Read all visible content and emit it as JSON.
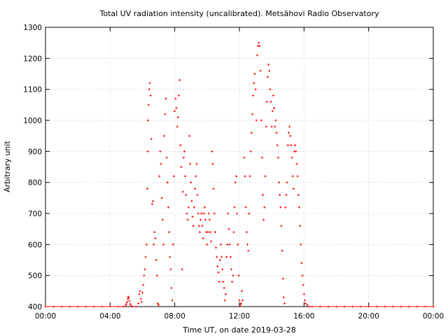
{
  "chart_data": {
    "type": "scatter",
    "title": "Total UV radiation intensity (uncalibrated). Metsähovi Radio Observatory",
    "xlabel": "Time UT, on date 2019-03-28",
    "ylabel": "Arbitrary unit",
    "xlim": [
      0,
      24
    ],
    "ylim": [
      400,
      1300
    ],
    "x_ticks": [
      "00:00",
      "04:00",
      "08:00",
      "12:00",
      "16:00",
      "20:00",
      "00:00"
    ],
    "y_ticks": [
      "400",
      "500",
      "600",
      "700",
      "800",
      "900",
      "1000",
      "1100",
      "1200",
      "1300"
    ],
    "grid": true,
    "marker_color": "#ff0000",
    "series": [
      {
        "values_note": "",
        "points": [
          [
            0.0,
            400
          ],
          [
            0.5,
            400
          ],
          [
            1.0,
            400
          ],
          [
            1.5,
            400
          ],
          [
            2.0,
            400
          ],
          [
            2.5,
            400
          ],
          [
            3.0,
            400
          ],
          [
            3.5,
            400
          ],
          [
            4.0,
            400
          ],
          [
            4.5,
            400
          ],
          [
            4.8,
            400
          ],
          [
            4.95,
            402
          ],
          [
            5.0,
            408
          ],
          [
            5.05,
            415
          ],
          [
            5.1,
            425
          ],
          [
            5.12,
            432
          ],
          [
            5.15,
            428
          ],
          [
            5.2,
            418
          ],
          [
            5.25,
            408
          ],
          [
            5.3,
            402
          ],
          [
            5.4,
            400
          ],
          [
            5.6,
            400
          ],
          [
            5.75,
            410
          ],
          [
            5.8,
            440
          ],
          [
            5.85,
            450
          ],
          [
            5.9,
            425
          ],
          [
            5.95,
            415
          ],
          [
            6.0,
            445
          ],
          [
            6.05,
            470
          ],
          [
            6.1,
            500
          ],
          [
            6.15,
            520
          ],
          [
            6.2,
            560
          ],
          [
            6.25,
            600
          ],
          [
            6.3,
            780
          ],
          [
            6.32,
            900
          ],
          [
            6.35,
            1000
          ],
          [
            6.38,
            1050
          ],
          [
            6.42,
            1100
          ],
          [
            6.45,
            1120
          ],
          [
            6.5,
            1080
          ],
          [
            6.55,
            940
          ],
          [
            6.6,
            730
          ],
          [
            6.65,
            740
          ],
          [
            6.7,
            600
          ],
          [
            6.75,
            640
          ],
          [
            6.8,
            620
          ],
          [
            6.85,
            550
          ],
          [
            6.9,
            500
          ],
          [
            6.95,
            410
          ],
          [
            7.0,
            405
          ],
          [
            7.05,
            820
          ],
          [
            7.1,
            900
          ],
          [
            7.15,
            860
          ],
          [
            7.2,
            750
          ],
          [
            7.25,
            680
          ],
          [
            7.3,
            600
          ],
          [
            7.35,
            950
          ],
          [
            7.4,
            1020
          ],
          [
            7.45,
            1070
          ],
          [
            7.5,
            880
          ],
          [
            7.55,
            800
          ],
          [
            7.6,
            720
          ],
          [
            7.65,
            640
          ],
          [
            7.7,
            560
          ],
          [
            7.75,
            520
          ],
          [
            7.8,
            460
          ],
          [
            7.85,
            420
          ],
          [
            7.9,
            600
          ],
          [
            7.95,
            820
          ],
          [
            8.0,
            1030
          ],
          [
            8.05,
            1070
          ],
          [
            8.1,
            1040
          ],
          [
            8.15,
            980
          ],
          [
            8.2,
            1010
          ],
          [
            8.25,
            1080
          ],
          [
            8.3,
            1130
          ],
          [
            8.35,
            920
          ],
          [
            8.4,
            850
          ],
          [
            8.45,
            520
          ],
          [
            8.5,
            770
          ],
          [
            8.55,
            880
          ],
          [
            8.6,
            900
          ],
          [
            8.65,
            820
          ],
          [
            8.7,
            760
          ],
          [
            8.75,
            700
          ],
          [
            8.8,
            680
          ],
          [
            8.85,
            720
          ],
          [
            8.9,
            950
          ],
          [
            8.95,
            860
          ],
          [
            9.0,
            800
          ],
          [
            9.05,
            740
          ],
          [
            9.1,
            690
          ],
          [
            9.15,
            660
          ],
          [
            9.2,
            720
          ],
          [
            9.25,
            780
          ],
          [
            9.3,
            820
          ],
          [
            9.35,
            860
          ],
          [
            9.4,
            760
          ],
          [
            9.45,
            700
          ],
          [
            9.5,
            660
          ],
          [
            9.55,
            640
          ],
          [
            9.6,
            680
          ],
          [
            9.65,
            700
          ],
          [
            9.7,
            660
          ],
          [
            9.75,
            620
          ],
          [
            9.8,
            700
          ],
          [
            9.85,
            720
          ],
          [
            9.9,
            680
          ],
          [
            9.95,
            640
          ],
          [
            10.0,
            600
          ],
          [
            10.05,
            640
          ],
          [
            10.1,
            700
          ],
          [
            10.15,
            680
          ],
          [
            10.2,
            640
          ],
          [
            10.25,
            610
          ],
          [
            10.3,
            900
          ],
          [
            10.35,
            860
          ],
          [
            10.4,
            780
          ],
          [
            10.45,
            700
          ],
          [
            10.5,
            640
          ],
          [
            10.55,
            590
          ],
          [
            10.6,
            560
          ],
          [
            10.65,
            530
          ],
          [
            10.7,
            510
          ],
          [
            10.75,
            480
          ],
          [
            10.8,
            550
          ],
          [
            10.85,
            600
          ],
          [
            10.9,
            560
          ],
          [
            10.95,
            520
          ],
          [
            11.0,
            480
          ],
          [
            11.05,
            460
          ],
          [
            11.1,
            420
          ],
          [
            11.15,
            440
          ],
          [
            11.2,
            560
          ],
          [
            11.25,
            600
          ],
          [
            11.3,
            700
          ],
          [
            11.35,
            650
          ],
          [
            11.4,
            600
          ],
          [
            11.45,
            560
          ],
          [
            11.5,
            520
          ],
          [
            11.55,
            480
          ],
          [
            11.6,
            500
          ],
          [
            11.65,
            640
          ],
          [
            11.7,
            720
          ],
          [
            11.75,
            800
          ],
          [
            11.8,
            820
          ],
          [
            11.85,
            700
          ],
          [
            11.9,
            600
          ],
          [
            11.95,
            500
          ],
          [
            12.0,
            420
          ],
          [
            12.05,
            405
          ],
          [
            12.1,
            410
          ],
          [
            12.15,
            450
          ],
          [
            12.2,
            420
          ],
          [
            12.3,
            880
          ],
          [
            12.35,
            820
          ],
          [
            12.4,
            720
          ],
          [
            12.45,
            640
          ],
          [
            12.5,
            600
          ],
          [
            12.55,
            580
          ],
          [
            12.6,
            700
          ],
          [
            12.65,
            820
          ],
          [
            12.7,
            900
          ],
          [
            12.75,
            960
          ],
          [
            12.8,
            1020
          ],
          [
            12.85,
            1080
          ],
          [
            12.9,
            1120
          ],
          [
            12.95,
            1150
          ],
          [
            13.0,
            1100
          ],
          [
            13.05,
            1000
          ],
          [
            13.1,
            1210
          ],
          [
            13.15,
            1240
          ],
          [
            13.2,
            1250
          ],
          [
            13.25,
            1240
          ],
          [
            13.3,
            1160
          ],
          [
            13.35,
            1000
          ],
          [
            13.4,
            880
          ],
          [
            13.45,
            760
          ],
          [
            13.5,
            680
          ],
          [
            13.55,
            720
          ],
          [
            13.6,
            820
          ],
          [
            13.65,
            980
          ],
          [
            13.7,
            1060
          ],
          [
            13.75,
            1140
          ],
          [
            13.8,
            1180
          ],
          [
            13.85,
            1160
          ],
          [
            13.9,
            1100
          ],
          [
            13.95,
            1060
          ],
          [
            14.0,
            980
          ],
          [
            14.05,
            1030
          ],
          [
            14.1,
            1080
          ],
          [
            14.15,
            1040
          ],
          [
            14.2,
            980
          ],
          [
            14.25,
            1000
          ],
          [
            14.3,
            960
          ],
          [
            14.35,
            920
          ],
          [
            14.4,
            880
          ],
          [
            14.45,
            800
          ],
          [
            14.5,
            760
          ],
          [
            14.55,
            720
          ],
          [
            14.6,
            660
          ],
          [
            14.65,
            580
          ],
          [
            14.7,
            490
          ],
          [
            14.75,
            430
          ],
          [
            14.8,
            410
          ],
          [
            14.85,
            720
          ],
          [
            14.9,
            760
          ],
          [
            14.95,
            800
          ],
          [
            15.0,
            920
          ],
          [
            15.05,
            960
          ],
          [
            15.1,
            980
          ],
          [
            15.15,
            950
          ],
          [
            15.2,
            920
          ],
          [
            15.25,
            880
          ],
          [
            15.3,
            820
          ],
          [
            15.35,
            780
          ],
          [
            15.4,
            900
          ],
          [
            15.45,
            920
          ],
          [
            15.5,
            900
          ],
          [
            15.55,
            860
          ],
          [
            15.6,
            820
          ],
          [
            15.65,
            760
          ],
          [
            15.7,
            720
          ],
          [
            15.75,
            660
          ],
          [
            15.8,
            600
          ],
          [
            15.85,
            540
          ],
          [
            15.9,
            500
          ],
          [
            15.95,
            470
          ],
          [
            16.0,
            440
          ],
          [
            16.05,
            420
          ],
          [
            16.1,
            410
          ],
          [
            16.2,
            405
          ],
          [
            16.3,
            400
          ],
          [
            16.5,
            400
          ],
          [
            17.0,
            400
          ],
          [
            17.5,
            400
          ],
          [
            18.0,
            400
          ],
          [
            18.5,
            400
          ],
          [
            19.0,
            400
          ],
          [
            19.5,
            400
          ],
          [
            20.0,
            400
          ],
          [
            20.5,
            400
          ],
          [
            21.0,
            400
          ],
          [
            21.5,
            400
          ],
          [
            22.0,
            400
          ],
          [
            22.5,
            400
          ],
          [
            23.0,
            400
          ],
          [
            23.5,
            400
          ],
          [
            24.0,
            400
          ]
        ]
      }
    ]
  }
}
